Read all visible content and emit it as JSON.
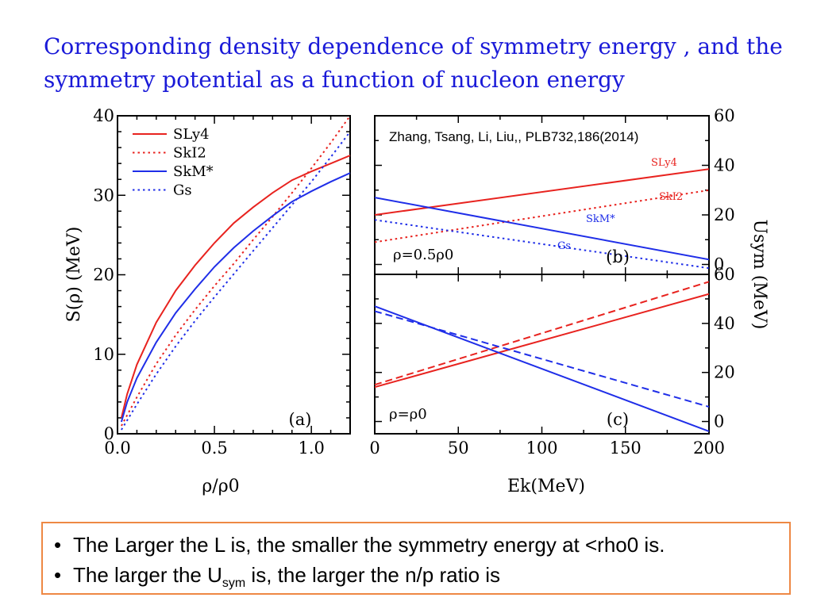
{
  "title": {
    "line1": "Corresponding density dependence of symmetry energy , and the",
    "line2": "symmetry potential as a function of nucleon energy"
  },
  "colors": {
    "title": "#1a1ad8",
    "red": "#e8231f",
    "blue": "#1f2ee8",
    "box_border": "#ee8844"
  },
  "chart_data": [
    {
      "type": "line",
      "panel_label": "(a)",
      "xlabel": "ρ/ρ0",
      "ylabel": "S(ρ) (MeV)",
      "xlim": [
        0,
        1.2
      ],
      "ylim": [
        0,
        40
      ],
      "xticks": [
        "0.0",
        "0.5",
        "1.0"
      ],
      "yticks": [
        "0",
        "10",
        "20",
        "30",
        "40"
      ],
      "legend": [
        "SLy4",
        "SkI2",
        "SkM*",
        "Gs"
      ],
      "series": [
        {
          "name": "SLy4",
          "color": "red",
          "style": "solid",
          "x": [
            0.02,
            0.05,
            0.1,
            0.2,
            0.3,
            0.4,
            0.5,
            0.6,
            0.7,
            0.8,
            0.9,
            1.0,
            1.1,
            1.2
          ],
          "y": [
            2.0,
            5.0,
            8.7,
            14.0,
            18.0,
            21.2,
            24.0,
            26.5,
            28.5,
            30.3,
            31.9,
            33.0,
            34.0,
            35.0
          ]
        },
        {
          "name": "SkI2",
          "color": "red",
          "style": "dotted",
          "x": [
            0.02,
            0.1,
            0.2,
            0.3,
            0.4,
            0.5,
            0.6,
            0.7,
            0.8,
            0.9,
            1.0,
            1.1,
            1.2
          ],
          "y": [
            1.0,
            4.6,
            8.8,
            12.4,
            15.6,
            18.6,
            21.4,
            24.4,
            27.3,
            30.3,
            33.4,
            36.6,
            40.0
          ]
        },
        {
          "name": "SkM*",
          "color": "blue",
          "style": "solid",
          "x": [
            0.02,
            0.05,
            0.1,
            0.2,
            0.3,
            0.4,
            0.5,
            0.6,
            0.7,
            0.8,
            0.9,
            1.0,
            1.1,
            1.2
          ],
          "y": [
            1.5,
            4.0,
            7.0,
            11.5,
            15.2,
            18.2,
            21.0,
            23.4,
            25.5,
            27.4,
            29.2,
            30.5,
            31.7,
            32.8
          ]
        },
        {
          "name": "Gs",
          "color": "blue",
          "style": "dotted",
          "x": [
            0.02,
            0.1,
            0.2,
            0.3,
            0.4,
            0.5,
            0.6,
            0.7,
            0.8,
            0.9,
            1.0,
            1.1,
            1.2
          ],
          "y": [
            0.5,
            3.7,
            7.5,
            11.0,
            14.2,
            17.2,
            20.1,
            23.0,
            25.9,
            28.8,
            31.7,
            34.8,
            38.0
          ]
        }
      ]
    },
    {
      "type": "line",
      "panel_label": "(b)",
      "annotation": "ρ=0.5ρ0",
      "citation": "Zhang, Tsang, Li, Liu,, PLB732,186(2014)",
      "xlim": [
        0,
        200
      ],
      "ylim": [
        -4,
        60
      ],
      "yticks": [
        "0",
        "20",
        "40",
        "60"
      ],
      "series": [
        {
          "name": "SLy4",
          "color": "red",
          "style": "solid",
          "label": "SLy4",
          "x": [
            0,
            200
          ],
          "y": [
            20,
            38.5
          ]
        },
        {
          "name": "SkI2",
          "color": "red",
          "style": "dotted",
          "label": "SkI2",
          "x": [
            0,
            200
          ],
          "y": [
            9,
            30
          ]
        },
        {
          "name": "SkM*",
          "color": "blue",
          "style": "solid",
          "label": "SkM*",
          "x": [
            0,
            200
          ],
          "y": [
            27,
            2
          ]
        },
        {
          "name": "Gs",
          "color": "blue",
          "style": "dotted",
          "label": "Gs",
          "x": [
            0,
            200
          ],
          "y": [
            18,
            -1.5
          ]
        }
      ]
    },
    {
      "type": "line",
      "panel_label": "(c)",
      "annotation": "ρ=ρ0",
      "xlabel": "Ek(MeV)",
      "ylabel": "Usym (MeV)",
      "xlim": [
        0,
        200
      ],
      "ylim": [
        -5,
        60
      ],
      "xticks": [
        "0",
        "50",
        "100",
        "150",
        "200"
      ],
      "yticks": [
        "0",
        "20",
        "40",
        "60"
      ],
      "series": [
        {
          "name": "SLy4",
          "color": "red",
          "style": "solid",
          "x": [
            0,
            200
          ],
          "y": [
            14,
            52
          ]
        },
        {
          "name": "SkI2",
          "color": "red",
          "style": "dashed",
          "x": [
            0,
            200
          ],
          "y": [
            15,
            57
          ]
        },
        {
          "name": "SkM*",
          "color": "blue",
          "style": "solid",
          "x": [
            0,
            200
          ],
          "y": [
            47,
            -4
          ]
        },
        {
          "name": "Gs",
          "color": "blue",
          "style": "dashed",
          "x": [
            0,
            200
          ],
          "y": [
            45,
            6
          ]
        }
      ]
    }
  ],
  "bullets": {
    "b1_text": "The Larger the L is, the smaller the symmetry energy at <rho0 is.",
    "b2_pre": "The larger the U",
    "b2_sub": "sym",
    "b2_post": " is, the larger the n/p ratio is",
    "marker": "•"
  }
}
